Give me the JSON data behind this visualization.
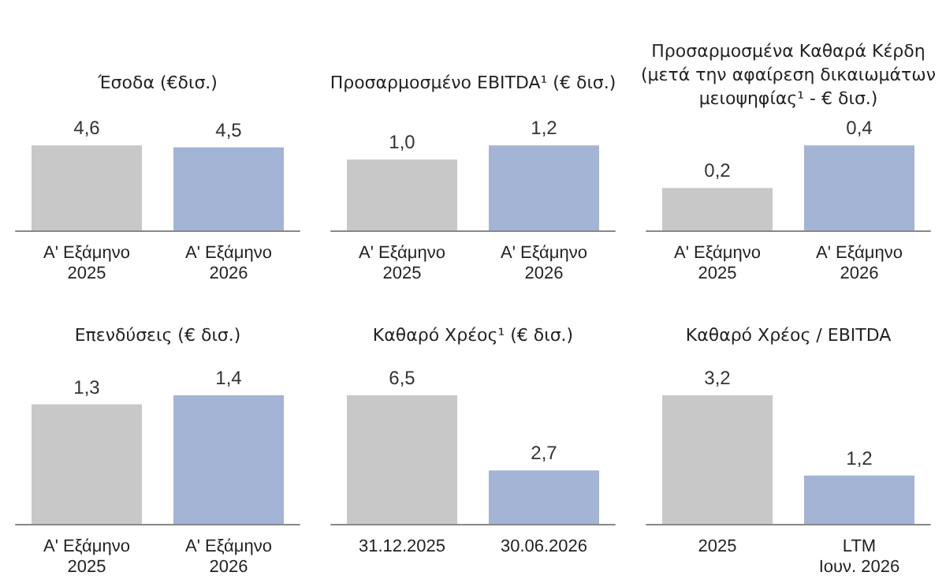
{
  "chart_data": [
    {
      "type": "bar",
      "title": "Έσοδα (€δισ.)",
      "categories": [
        "Α' Εξάμηνο\n2025",
        "Α' Εξάμηνο\n2026"
      ],
      "values": [
        4.6,
        4.5
      ],
      "value_labels": [
        "4,6",
        "4,5"
      ],
      "colors": [
        "#c8c8c8",
        "#a3b4d4"
      ]
    },
    {
      "type": "bar",
      "title": "Προσαρμοσμένο EBITDA¹ (€ δισ.)",
      "categories": [
        "Α' Εξάμηνο\n2025",
        "Α' Εξάμηνο\n2026"
      ],
      "values": [
        1.0,
        1.2
      ],
      "value_labels": [
        "1,0",
        "1,2"
      ],
      "colors": [
        "#c8c8c8",
        "#a3b4d4"
      ]
    },
    {
      "type": "bar",
      "title": "Προσαρμοσμένα Καθαρά Κέρδη\n(μετά την αφαίρεση δικαιωμάτων\nμειοψηφίας¹ - € δισ.)",
      "categories": [
        "Α' Εξάμηνο\n2025",
        "Α' Εξάμηνο\n2026"
      ],
      "values": [
        0.2,
        0.4
      ],
      "value_labels": [
        "0,2",
        "0,4"
      ],
      "colors": [
        "#c8c8c8",
        "#a3b4d4"
      ]
    },
    {
      "type": "bar",
      "title": "Επενδύσεις (€ δισ.)",
      "categories": [
        "Α' Εξάμηνο\n2025",
        "Α' Εξάμηνο\n2026"
      ],
      "values": [
        1.3,
        1.4
      ],
      "value_labels": [
        "1,3",
        "1,4"
      ],
      "colors": [
        "#c8c8c8",
        "#a3b4d4"
      ]
    },
    {
      "type": "bar",
      "title": "Καθαρό Χρέος¹ (€ δισ.)",
      "categories": [
        "31.12.2025",
        "30.06.2026"
      ],
      "values": [
        6.5,
        2.7
      ],
      "value_labels": [
        "6,5",
        "2,7"
      ],
      "colors": [
        "#c8c8c8",
        "#a3b4d4"
      ]
    },
    {
      "type": "bar",
      "title": "Καθαρό Χρέος / EBITDA",
      "categories": [
        "2025",
        "LTM\nΙουν. 2026"
      ],
      "values": [
        3.2,
        1.2
      ],
      "value_labels": [
        "3,2",
        "1,2"
      ],
      "colors": [
        "#c8c8c8",
        "#a3b4d4"
      ]
    }
  ]
}
